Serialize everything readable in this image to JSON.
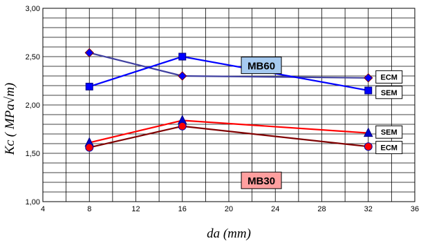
{
  "chart_data": {
    "type": "line",
    "title": "",
    "xlabel": "da (mm)",
    "ylabel": "Kᴄ ( MPa√m)",
    "xlim": [
      4,
      36
    ],
    "ylim": [
      1.0,
      3.0
    ],
    "x_ticks": [
      "4",
      "8",
      "12",
      "16",
      "20",
      "24",
      "28",
      "32",
      "36"
    ],
    "y_ticks": [
      "1,00",
      "1,50",
      "2,00",
      "2,50",
      "3,00"
    ],
    "grid": true,
    "series": [
      {
        "name": "",
        "group": "MB60",
        "method": "ECM",
        "color": "#4040a0",
        "marker": "diamond",
        "marker_color": "#0000ff",
        "x": [
          8,
          16,
          32
        ],
        "y": [
          2.54,
          2.3,
          2.28
        ]
      },
      {
        "name": "",
        "group": "MB60",
        "method": "SEM",
        "color": "#0000ff",
        "marker": "square",
        "marker_color": "#0000ff",
        "x": [
          8,
          16,
          32
        ],
        "y": [
          2.19,
          2.5,
          2.15
        ]
      },
      {
        "name": "",
        "group": "MB30",
        "method": "SEM",
        "color": "#ff0000",
        "marker": "triangle",
        "marker_color": "#0000cc",
        "x": [
          8,
          16,
          32
        ],
        "y": [
          1.61,
          1.84,
          1.71
        ]
      },
      {
        "name": "",
        "group": "MB30",
        "method": "ECM",
        "color": "#800000",
        "marker": "circle",
        "marker_color": "#ff0000",
        "x": [
          8,
          16,
          32
        ],
        "y": [
          1.56,
          1.78,
          1.57
        ]
      }
    ],
    "group_labels": [
      {
        "text": "MB60",
        "x": 22.8,
        "y": 2.41,
        "fill": "#a6caf0"
      },
      {
        "text": "MB30",
        "x": 22.8,
        "y": 1.22,
        "fill": "#ff9f9f"
      }
    ],
    "end_labels": [
      {
        "text": "ECM",
        "y": 2.29
      },
      {
        "text": "SEM",
        "y": 2.13
      },
      {
        "text": "SEM",
        "y": 1.72
      },
      {
        "text": "ECM",
        "y": 1.56
      }
    ]
  }
}
